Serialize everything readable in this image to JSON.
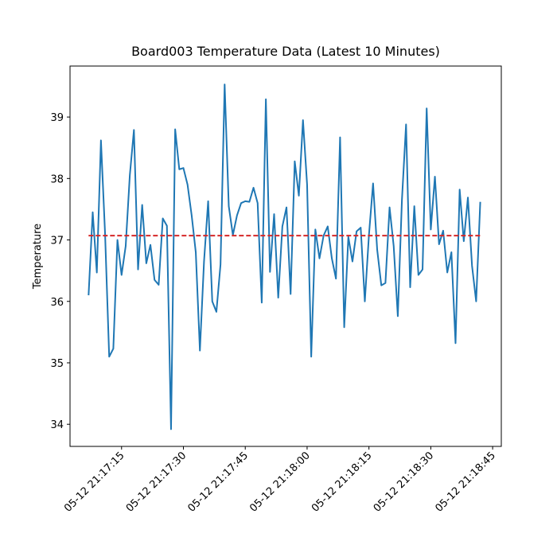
{
  "chart_data": {
    "type": "line",
    "title": "Board003 Temperature Data (Latest 10 Minutes)",
    "y_label": "Temperature",
    "x": [
      "05-12 21:17:07",
      "05-12 21:17:08",
      "05-12 21:17:09",
      "05-12 21:17:10",
      "05-12 21:17:11",
      "05-12 21:17:12",
      "05-12 21:17:13",
      "05-12 21:17:14",
      "05-12 21:17:15",
      "05-12 21:17:16",
      "05-12 21:17:17",
      "05-12 21:17:18",
      "05-12 21:17:19",
      "05-12 21:17:20",
      "05-12 21:17:21",
      "05-12 21:17:22",
      "05-12 21:17:23",
      "05-12 21:17:24",
      "05-12 21:17:25",
      "05-12 21:17:26",
      "05-12 21:17:27",
      "05-12 21:17:28",
      "05-12 21:17:29",
      "05-12 21:17:30",
      "05-12 21:17:31",
      "05-12 21:17:32",
      "05-12 21:17:33",
      "05-12 21:17:34",
      "05-12 21:17:35",
      "05-12 21:17:36",
      "05-12 21:17:37",
      "05-12 21:17:38",
      "05-12 21:17:39",
      "05-12 21:17:40",
      "05-12 21:17:41",
      "05-12 21:17:42",
      "05-12 21:17:43",
      "05-12 21:17:44",
      "05-12 21:17:45",
      "05-12 21:17:46",
      "05-12 21:17:47",
      "05-12 21:17:48",
      "05-12 21:17:49",
      "05-12 21:17:50",
      "05-12 21:17:51",
      "05-12 21:17:52",
      "05-12 21:17:53",
      "05-12 21:17:54",
      "05-12 21:17:55",
      "05-12 21:17:56",
      "05-12 21:17:57",
      "05-12 21:17:58",
      "05-12 21:17:59",
      "05-12 21:18:00",
      "05-12 21:18:01",
      "05-12 21:18:02",
      "05-12 21:18:03",
      "05-12 21:18:04",
      "05-12 21:18:05",
      "05-12 21:18:06",
      "05-12 21:18:07",
      "05-12 21:18:08",
      "05-12 21:18:09",
      "05-12 21:18:10",
      "05-12 21:18:11",
      "05-12 21:18:12",
      "05-12 21:18:13",
      "05-12 21:18:14",
      "05-12 21:18:15",
      "05-12 21:18:16",
      "05-12 21:18:17",
      "05-12 21:18:18",
      "05-12 21:18:19",
      "05-12 21:18:20",
      "05-12 21:18:21",
      "05-12 21:18:22",
      "05-12 21:18:23",
      "05-12 21:18:24",
      "05-12 21:18:25",
      "05-12 21:18:26",
      "05-12 21:18:27",
      "05-12 21:18:28",
      "05-12 21:18:29",
      "05-12 21:18:30",
      "05-12 21:18:31",
      "05-12 21:18:32",
      "05-12 21:18:33",
      "05-12 21:18:34",
      "05-12 21:18:35",
      "05-12 21:18:36",
      "05-12 21:18:37",
      "05-12 21:18:38",
      "05-12 21:18:39",
      "05-12 21:18:40",
      "05-12 21:18:41",
      "05-12 21:18:42"
    ],
    "series": [
      {
        "name": "Temperature",
        "color": "#1f77b4",
        "values": [
          36.1,
          37.45,
          36.47,
          38.62,
          37.1,
          35.1,
          35.23,
          37.0,
          36.43,
          36.9,
          38.05,
          38.79,
          36.52,
          37.57,
          36.62,
          36.92,
          36.35,
          36.27,
          37.35,
          37.23,
          33.92,
          38.8,
          38.15,
          38.17,
          37.9,
          37.4,
          36.8,
          35.2,
          36.65,
          37.63,
          36.0,
          35.83,
          36.6,
          39.53,
          37.55,
          37.08,
          37.4,
          37.6,
          37.63,
          37.62,
          37.85,
          37.6,
          35.98,
          39.29,
          36.48,
          37.42,
          36.06,
          37.22,
          37.53,
          36.12,
          38.28,
          37.72,
          38.95,
          37.9,
          35.1,
          37.17,
          36.7,
          37.07,
          37.22,
          36.7,
          36.37,
          38.67,
          35.58,
          37.05,
          36.65,
          37.14,
          37.2,
          36.0,
          37.08,
          37.92,
          36.84,
          36.26,
          36.3,
          37.53,
          36.9,
          35.76,
          37.65,
          38.88,
          36.23,
          37.55,
          36.43,
          36.52,
          39.14,
          37.17,
          38.03,
          36.93,
          37.15,
          36.47,
          36.8,
          35.32,
          37.82,
          36.98,
          37.69,
          36.58,
          36.0,
          37.62
        ]
      }
    ],
    "mean_line": {
      "value": 37.07,
      "color": "#d62728",
      "style": "dashed"
    },
    "xlim": [
      "05-12 21:17:02.5",
      "05-12 21:18:47.1"
    ],
    "xticks": [
      "05-12 21:17:15",
      "05-12 21:17:30",
      "05-12 21:17:45",
      "05-12 21:18:00",
      "05-12 21:18:15",
      "05-12 21:18:30",
      "05-12 21:18:45"
    ],
    "ylim": [
      33.64,
      39.83
    ],
    "yticks": [
      34,
      35,
      36,
      37,
      38,
      39
    ],
    "grid": false
  }
}
